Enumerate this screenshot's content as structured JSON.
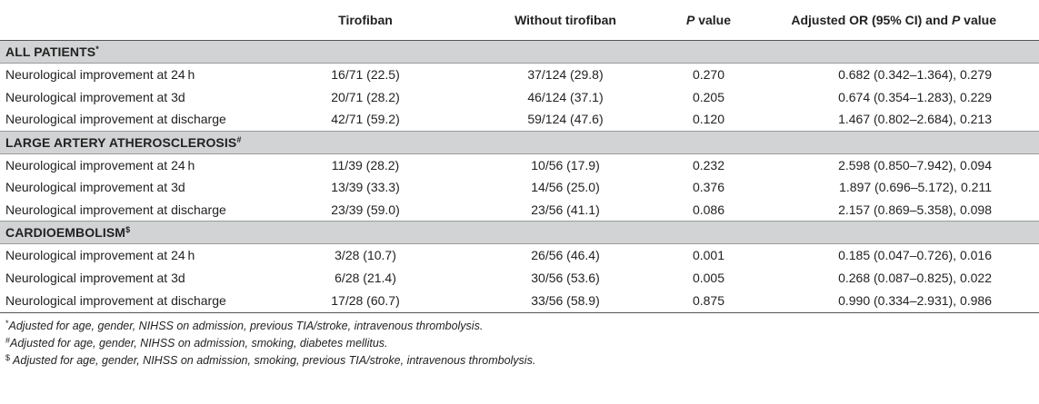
{
  "table": {
    "headers": [
      "",
      "Tirofiban",
      "Without tirofiban",
      "P value",
      "Adjusted OR (95% CI) and P value"
    ],
    "header_parts": {
      "pvalue": {
        "italic": "P",
        "rest": " value"
      },
      "adjusted": {
        "prefix": "Adjusted OR (95% CI) and ",
        "italic": "P",
        "rest": " value"
      }
    },
    "sections": [
      {
        "title": "ALL PATIENTS",
        "marker": "*",
        "rows": [
          {
            "label": "Neurological improvement at 24 h",
            "tirofiban": "16/71 (22.5)",
            "without": "37/124 (29.8)",
            "p": "0.270",
            "adjusted": "0.682 (0.342–1.364), 0.279"
          },
          {
            "label": "Neurological improvement at 3d",
            "tirofiban": "20/71 (28.2)",
            "without": "46/124 (37.1)",
            "p": "0.205",
            "adjusted": "0.674 (0.354–1.283), 0.229"
          },
          {
            "label": "Neurological improvement at discharge",
            "tirofiban": "42/71 (59.2)",
            "without": "59/124 (47.6)",
            "p": "0.120",
            "adjusted": "1.467 (0.802–2.684), 0.213"
          }
        ]
      },
      {
        "title": "LARGE ARTERY ATHEROSCLEROSIS",
        "marker": "#",
        "rows": [
          {
            "label": "Neurological improvement at 24 h",
            "tirofiban": "11/39 (28.2)",
            "without": "10/56 (17.9)",
            "p": "0.232",
            "adjusted": "2.598 (0.850–7.942), 0.094"
          },
          {
            "label": "Neurological improvement at 3d",
            "tirofiban": "13/39 (33.3)",
            "without": "14/56 (25.0)",
            "p": "0.376",
            "adjusted": "1.897 (0.696–5.172), 0.211"
          },
          {
            "label": "Neurological improvement at discharge",
            "tirofiban": "23/39 (59.0)",
            "without": "23/56 (41.1)",
            "p": "0.086",
            "adjusted": "2.157 (0.869–5.358), 0.098"
          }
        ]
      },
      {
        "title": "CARDIOEMBOLISM",
        "marker": "$",
        "rows": [
          {
            "label": "Neurological improvement at 24 h",
            "tirofiban": "3/28 (10.7)",
            "without": "26/56 (46.4)",
            "p": "0.001",
            "adjusted": "0.185 (0.047–0.726), 0.016"
          },
          {
            "label": "Neurological improvement at 3d",
            "tirofiban": "6/28 (21.4)",
            "without": "30/56 (53.6)",
            "p": "0.005",
            "adjusted": "0.268 (0.087–0.825), 0.022"
          },
          {
            "label": "Neurological improvement at discharge",
            "tirofiban": "17/28 (60.7)",
            "without": "33/56 (58.9)",
            "p": "0.875",
            "adjusted": "0.990 (0.334–2.931), 0.986"
          }
        ]
      }
    ]
  },
  "footnotes": [
    {
      "marker": "*",
      "text": "Adjusted for age, gender, NIHSS on admission, previous TIA/stroke, intravenous thrombolysis."
    },
    {
      "marker": "#",
      "text": "Adjusted for age, gender, NIHSS on admission, smoking, diabetes mellitus."
    },
    {
      "marker": "$",
      "text": " Adjusted for age, gender, NIHSS on admission, smoking, previous TIA/stroke, intravenous thrombolysis."
    }
  ]
}
